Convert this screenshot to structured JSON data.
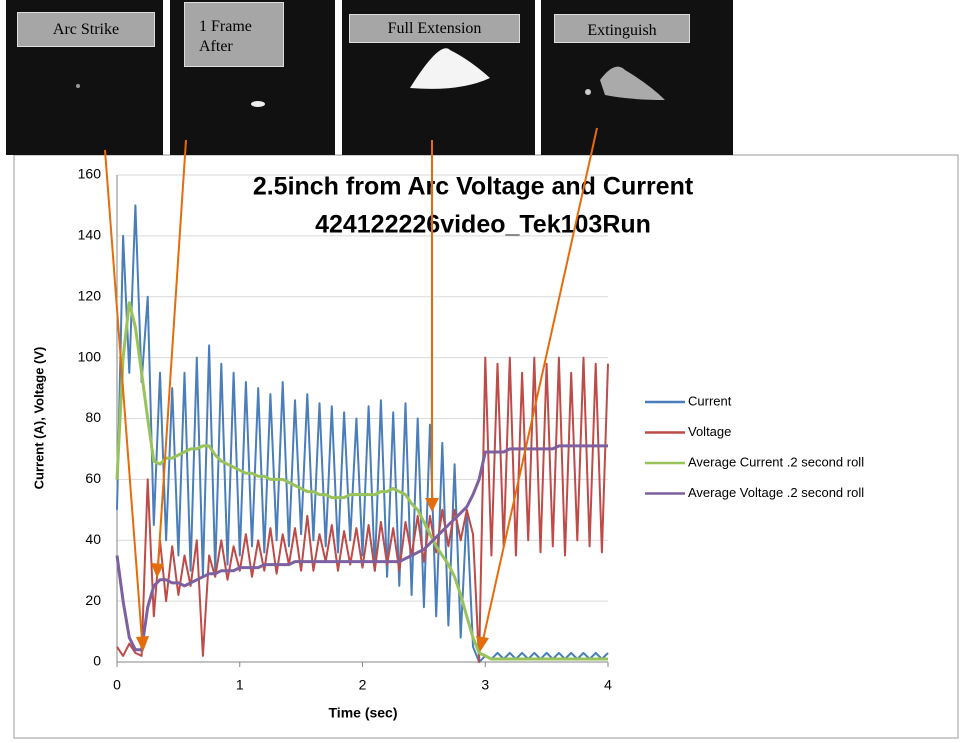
{
  "frames": [
    "Arc Strike",
    "1 Frame After",
    "Full Extension",
    "Extinguish"
  ],
  "chart_data": {
    "type": "line",
    "title": "2.5inch from Arc Voltage and Current",
    "subtitle": "424122226video_Tek103Run",
    "x_label": "Time (sec)",
    "y_label": "Current (A), Voltage (V)",
    "x": [
      0,
      0.05,
      0.1,
      0.15,
      0.2,
      0.25,
      0.3,
      0.35,
      0.4,
      0.45,
      0.5,
      0.55,
      0.6,
      0.65,
      0.7,
      0.75,
      0.8,
      0.85,
      0.9,
      0.95,
      1,
      1.05,
      1.1,
      1.15,
      1.2,
      1.25,
      1.3,
      1.35,
      1.4,
      1.45,
      1.5,
      1.55,
      1.6,
      1.65,
      1.7,
      1.75,
      1.8,
      1.85,
      1.9,
      1.95,
      2,
      2.05,
      2.1,
      2.15,
      2.2,
      2.25,
      2.3,
      2.35,
      2.4,
      2.45,
      2.5,
      2.55,
      2.6,
      2.65,
      2.7,
      2.75,
      2.8,
      2.85,
      2.9,
      2.95,
      3,
      3.05,
      3.1,
      3.15,
      3.2,
      3.25,
      3.3,
      3.35,
      3.4,
      3.45,
      3.5,
      3.55,
      3.6,
      3.65,
      3.7,
      3.75,
      3.8,
      3.85,
      3.9,
      3.95,
      4
    ],
    "series": [
      {
        "name": "Current",
        "color": "#4a7ebb",
        "values": [
          50,
          140,
          95,
          150,
          92,
          120,
          45,
          95,
          40,
          90,
          35,
          95,
          30,
          100,
          28,
          104,
          30,
          98,
          32,
          95,
          35,
          92,
          38,
          90,
          36,
          88,
          40,
          92,
          38,
          86,
          42,
          88,
          40,
          85,
          38,
          84,
          36,
          82,
          40,
          80,
          35,
          84,
          30,
          86,
          28,
          82,
          25,
          85,
          22,
          80,
          18,
          78,
          15,
          72,
          12,
          65,
          8,
          50,
          5,
          0,
          2,
          1,
          3,
          1,
          3,
          1,
          3,
          1,
          3,
          1,
          3,
          1,
          3,
          1,
          3,
          1,
          3,
          1,
          3,
          1,
          3
        ]
      },
      {
        "name": "Voltage",
        "color": "#be4b48",
        "values": [
          5,
          2,
          6,
          3,
          2,
          60,
          15,
          40,
          20,
          38,
          22,
          35,
          25,
          40,
          2,
          35,
          28,
          40,
          27,
          38,
          30,
          42,
          28,
          40,
          30,
          44,
          29,
          42,
          32,
          44,
          30,
          48,
          30,
          42,
          33,
          45,
          30,
          43,
          32,
          44,
          31,
          45,
          30,
          46,
          32,
          44,
          30,
          46,
          35,
          48,
          33,
          48,
          36,
          50,
          38,
          50,
          40,
          50,
          42,
          0,
          100,
          35,
          98,
          38,
          100,
          35,
          95,
          40,
          100,
          36,
          98,
          38,
          100,
          35,
          95,
          40,
          100,
          38,
          98,
          36,
          98
        ]
      },
      {
        "name": "Average Current .2 second roll",
        "color": "#98c35a",
        "values": [
          60,
          100,
          118,
          110,
          95,
          80,
          66,
          65,
          67,
          67,
          68,
          69,
          70,
          70,
          71,
          71,
          68,
          66,
          65,
          64,
          63,
          62,
          62,
          61,
          61,
          60,
          60,
          60,
          59,
          58,
          57,
          56,
          56,
          55,
          55,
          54,
          54,
          54,
          55,
          55,
          55,
          55,
          55,
          56,
          56,
          57,
          56,
          55,
          52,
          50,
          46,
          42,
          38,
          35,
          32,
          28,
          22,
          15,
          8,
          3,
          2,
          1,
          1,
          1,
          1,
          1,
          1,
          1,
          1,
          1,
          1,
          1,
          1,
          1,
          1,
          1,
          1,
          1,
          1,
          1,
          1
        ]
      },
      {
        "name": "Average Voltage .2 second roll",
        "color": "#7d60a0",
        "values": [
          35,
          20,
          8,
          4,
          4,
          18,
          25,
          27,
          27,
          26,
          26,
          25,
          26,
          27,
          28,
          29,
          29,
          30,
          30,
          30,
          31,
          31,
          31,
          31,
          32,
          32,
          32,
          32,
          32,
          33,
          33,
          33,
          33,
          33,
          33,
          33,
          33,
          33,
          33,
          33,
          33,
          33,
          33,
          33,
          33,
          33,
          33,
          34,
          35,
          36,
          37,
          39,
          41,
          43,
          45,
          47,
          49,
          51,
          55,
          60,
          69,
          69,
          69,
          69,
          70,
          70,
          70,
          70,
          70,
          70,
          70,
          70,
          71,
          71,
          71,
          71,
          71,
          71,
          71,
          71,
          71
        ]
      }
    ],
    "xlim": [
      0,
      4
    ],
    "xticks": [
      0,
      1,
      2,
      3,
      4
    ],
    "ylim": [
      0,
      160
    ],
    "yticks": [
      0,
      20,
      40,
      60,
      80,
      100,
      120,
      140,
      160
    ],
    "grid": true,
    "legend": "right"
  }
}
